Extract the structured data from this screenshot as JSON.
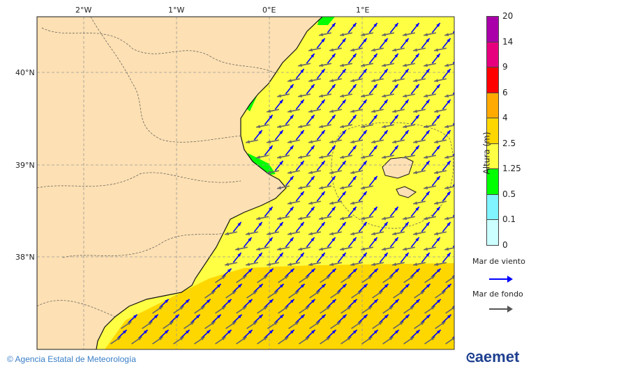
{
  "map": {
    "lon_ticks": [
      "2°W",
      "1°W",
      "0°E",
      "1°E"
    ],
    "lat_ticks": [
      "40°N",
      "39°N",
      "38°N"
    ],
    "colors": {
      "land": "#fde0b3",
      "sea_1_25_2_5": "#ffff44",
      "sea_2_5_4": "#ffd700",
      "sea_0_5_1_25": "#00ff00",
      "wind_sea": "#0000ff",
      "swell": "#666666"
    }
  },
  "legend": {
    "title": "Altura (m)",
    "levels": [
      "20",
      "14",
      "9",
      "6",
      "4",
      "2.5",
      "1.25",
      "0.5",
      "0.1",
      "0"
    ],
    "colors": [
      "#aa00aa",
      "#e6007e",
      "#ff0000",
      "#ffaa00",
      "#ffd700",
      "#ffff44",
      "#00ff00",
      "#80f4ff",
      "#ccffff"
    ],
    "wind_sea_label": "Mar de viento",
    "swell_label": "Mar de fondo"
  },
  "footer": {
    "credit": "© Agencia Estatal de Meteorología",
    "logo": "aemet"
  }
}
